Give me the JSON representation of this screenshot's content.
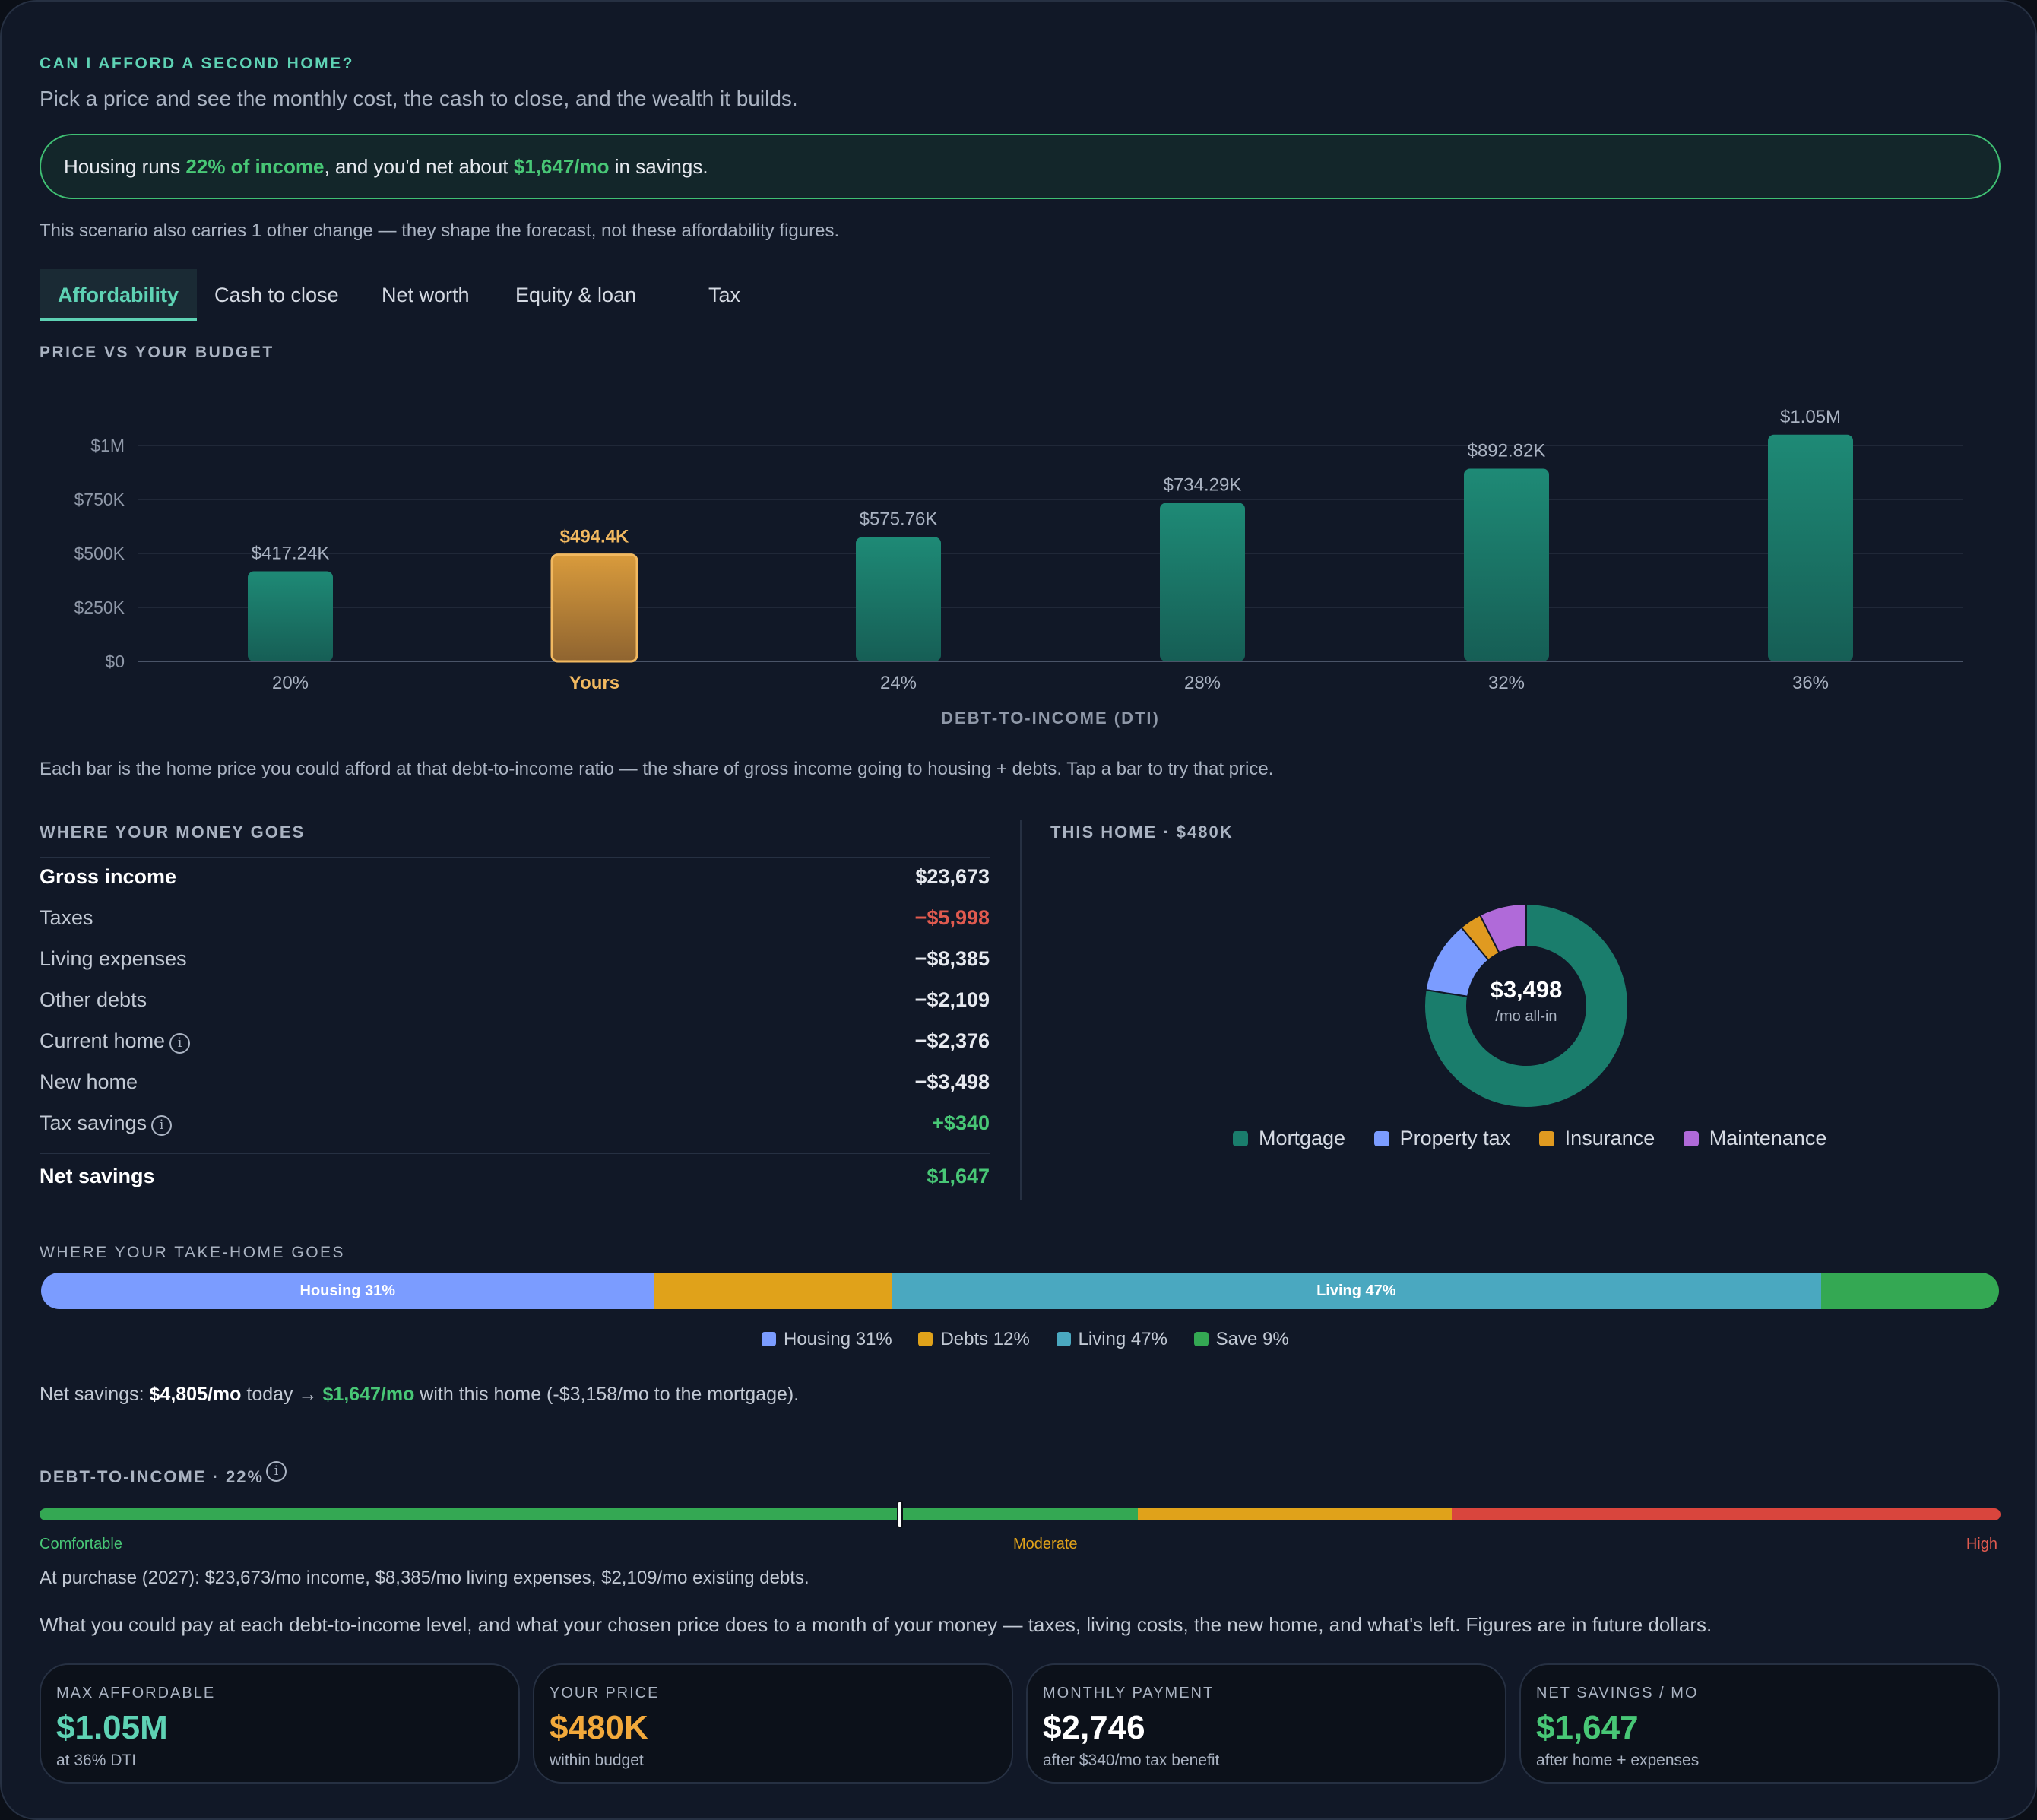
{
  "header": {
    "eyebrow": "CAN I AFFORD A SECOND HOME?",
    "subtitle": "Pick a price and see the monthly cost, the cash to close, and the wealth it builds."
  },
  "callout": {
    "prefix": "Housing runs ",
    "pct": "22% of income",
    "middle": ", and you'd net about ",
    "amount": "$1,647/mo",
    "suffix": " in savings."
  },
  "scenario_note": "This scenario also carries 1 other change — they shape the forecast, not these affordability figures.",
  "tabs": [
    {
      "label": "Affordability",
      "active": true
    },
    {
      "label": "Cash to close",
      "active": false
    },
    {
      "label": "Net worth",
      "active": false
    },
    {
      "label": "Equity & loan",
      "active": false
    },
    {
      "label": "Tax",
      "active": false
    }
  ],
  "chart_section_title": "PRICE VS YOUR BUDGET",
  "chart_data": {
    "type": "bar",
    "categories": [
      "20%",
      "Yours",
      "24%",
      "28%",
      "32%",
      "36%"
    ],
    "values": [
      417240,
      494400,
      575760,
      734290,
      892820,
      1050000
    ],
    "value_labels": [
      "$417.24K",
      "$494.4K",
      "$575.76K",
      "$734.29K",
      "$892.82K",
      "$1.05M"
    ],
    "highlight_index": 1,
    "xlabel": "DEBT-TO-INCOME (DTI)",
    "ylabel": "",
    "ylim": [
      0,
      1000000
    ],
    "y_ticks": [
      0,
      250000,
      500000,
      750000,
      1000000
    ],
    "y_tick_labels": [
      "$0",
      "$250K",
      "$500K",
      "$750K",
      "$1M"
    ],
    "grid": true,
    "colors": {
      "bar": "#1a7d6c",
      "highlight": "#d2932f",
      "highlight_label": "#f2b960"
    }
  },
  "chart_note": "Each bar is the home price you could afford at that debt-to-income ratio — the share of gross income going to housing + debts. Tap a bar to try that price.",
  "money": {
    "title": "WHERE YOUR MONEY GOES",
    "rows": [
      {
        "label": "Gross income",
        "value": "$23,673",
        "style": "bold",
        "info": false
      },
      {
        "label": "Taxes",
        "value": "−$5,998",
        "style": "red",
        "info": false
      },
      {
        "label": "Living expenses",
        "value": "−$8,385",
        "style": "",
        "info": false
      },
      {
        "label": "Other debts",
        "value": "−$2,109",
        "style": "",
        "info": false
      },
      {
        "label": "Current home",
        "value": "−$2,376",
        "style": "",
        "info": true
      },
      {
        "label": "New home",
        "value": "−$3,498",
        "style": "",
        "info": false
      },
      {
        "label": "Tax savings",
        "value": "+$340",
        "style": "green",
        "info": true
      }
    ],
    "total": {
      "label": "Net savings",
      "value": "$1,647"
    }
  },
  "home": {
    "title": "THIS HOME · $480K",
    "center_value": "$3,498",
    "center_label": "/mo all-in",
    "slices": [
      {
        "name": "Mortgage",
        "share": 0.775,
        "color": "#1a7d6c"
      },
      {
        "name": "Property tax",
        "share": 0.115,
        "color": "#7b9cff"
      },
      {
        "name": "Insurance",
        "share": 0.035,
        "color": "#e09a20"
      },
      {
        "name": "Maintenance",
        "share": 0.075,
        "color": "#b06ad9"
      }
    ]
  },
  "takehome": {
    "title": "WHERE YOUR TAKE-HOME GOES",
    "segments": [
      {
        "name": "Housing",
        "pct": 31,
        "bar_label": "Housing 31%",
        "legend": "Housing 31%",
        "color": "#7b9cff"
      },
      {
        "name": "Debts",
        "pct": 12,
        "bar_label": "",
        "legend": "Debts 12%",
        "color": "#e0a21a"
      },
      {
        "name": "Living",
        "pct": 47,
        "bar_label": "Living 47%",
        "legend": "Living 47%",
        "color": "#4aa8c0"
      },
      {
        "name": "Save",
        "pct": 9,
        "bar_label": "",
        "legend": "Save 9%",
        "color": "#34a853"
      }
    ],
    "net_prefix": "Net savings: ",
    "net_today": "$4,805/mo",
    "net_mid": " today → ",
    "net_new": "$1,647/mo",
    "net_suffix": " with this home (-$3,158/mo to the mortgage)."
  },
  "dti": {
    "title": "DEBT-TO-INCOME · 22%",
    "value_pct": 22,
    "label_low": "Comfortable",
    "label_mid": "Moderate",
    "label_high": "High",
    "purchase_note": "At purchase (2027): $23,673/mo income, $8,385/mo living expenses, $2,109/mo existing debts.",
    "description": "What you could pay at each debt-to-income level, and what your chosen price does to a month of your money — taxes, living costs, the new home, and what's left. Figures are in future dollars."
  },
  "cards": [
    {
      "key": "MAX AFFORDABLE",
      "value": "$1.05M",
      "sub": "at 36% DTI",
      "color": "#5ed2b4"
    },
    {
      "key": "YOUR PRICE",
      "value": "$480K",
      "sub": "within budget",
      "color": "#f2a93b"
    },
    {
      "key": "MONTHLY PAYMENT",
      "value": "$2,746",
      "sub": "after $340/mo tax benefit",
      "color": "#ffffff"
    },
    {
      "key": "NET SAVINGS / MO",
      "value": "$1,647",
      "sub": "after home + expenses",
      "color": "#48c776"
    }
  ]
}
